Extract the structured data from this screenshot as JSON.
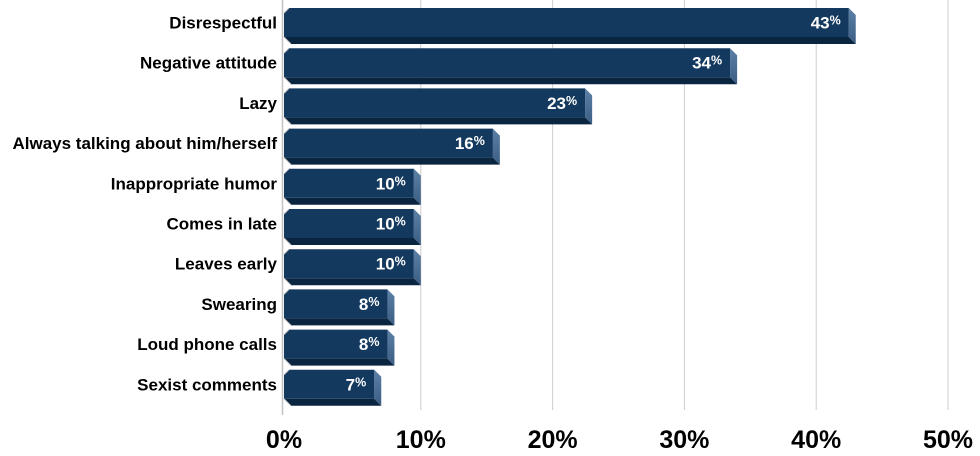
{
  "chart_data": {
    "type": "bar",
    "orientation": "horizontal",
    "bar_style": "3d-bevel",
    "categories": [
      "Disrespectful",
      "Negative attitude",
      "Lazy",
      "Always talking about him/herself",
      "Inappropriate humor",
      "Comes in late",
      "Leaves early",
      "Swearing",
      "Loud phone calls",
      "Sexist comments"
    ],
    "values": [
      43,
      34,
      23,
      16,
      10,
      10,
      10,
      8,
      8,
      7
    ],
    "value_labels": [
      "43%",
      "34%",
      "23%",
      "16%",
      "10%",
      "10%",
      "10%",
      "8%",
      "8%",
      "7%"
    ],
    "x_tick_values": [
      0,
      10,
      20,
      30,
      40,
      50
    ],
    "x_tick_labels": [
      "0%",
      "10%",
      "20%",
      "30%",
      "40%",
      "50%"
    ],
    "xlim": [
      0,
      50
    ],
    "xlabel": "",
    "ylabel": "",
    "grid": true,
    "legend": false,
    "colors": {
      "background": "#FFFFFF",
      "bar_face": "#14395E",
      "bar_side_light": "#5C80A6",
      "bar_side_dark": "#3C5E85",
      "bar_bottom": "#0A2540",
      "gridline": "#CDCDCD",
      "axis_line": "#C2C2C2",
      "chamfer_edge": "#C6C6C6",
      "category_label": "#000000",
      "value_label": "#FFFFFF",
      "x_tick_label": "#000000"
    }
  }
}
